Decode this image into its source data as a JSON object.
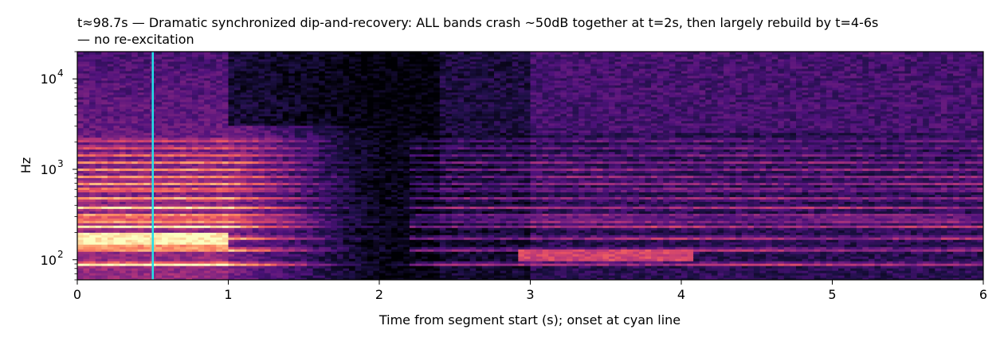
{
  "chart_data": {
    "type": "heatmap",
    "kind": "spectrogram",
    "title_lines": [
      "t≈98.7s — Dramatic synchronized dip-and-recovery: ALL bands crash ~50dB together at t=2s, then largely rebuild by t=4-6s",
      "— no re-excitation"
    ],
    "xlabel": "Time from segment start (s); onset at cyan line",
    "ylabel": "Hz",
    "xlim": [
      0,
      6
    ],
    "ylim": [
      60,
      20000
    ],
    "yscale": "log",
    "x_ticks": [
      "0",
      "1",
      "2",
      "3",
      "4",
      "5",
      "6"
    ],
    "y_ticks": [
      {
        "value": 100,
        "base": "10",
        "exp": "2"
      },
      {
        "value": 1000,
        "base": "10",
        "exp": "3"
      },
      {
        "value": 10000,
        "base": "10",
        "exp": "4"
      }
    ],
    "onset_line": {
      "x": 0.5,
      "color": "#22e0e8"
    },
    "colormap": "magma",
    "harmonic_bands_hz": [
      90,
      130,
      175,
      235,
      270,
      310,
      380,
      480,
      600,
      700,
      830,
      1000,
      1200,
      1450,
      1750,
      2100
    ],
    "grid": false
  }
}
